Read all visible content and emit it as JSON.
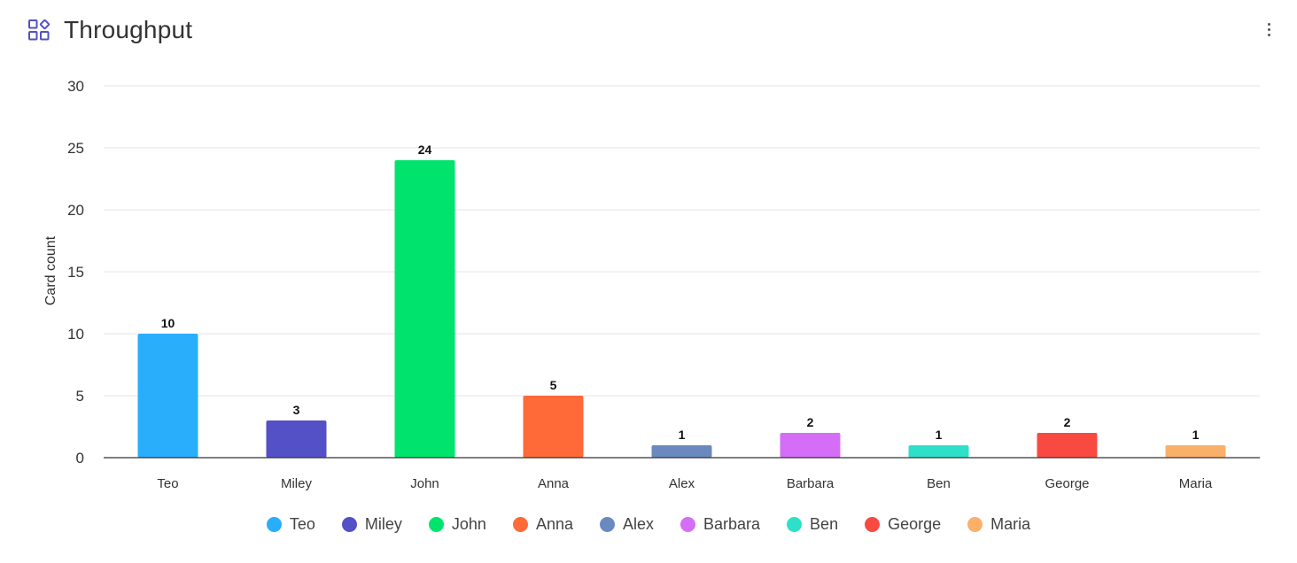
{
  "header": {
    "title": "Throughput",
    "widget_icon": "widget-grid-icon",
    "menu_icon": "more-vertical-icon"
  },
  "chart_data": {
    "type": "bar",
    "categories": [
      "Teo",
      "Miley",
      "John",
      "Anna",
      "Alex",
      "Barbara",
      "Ben",
      "George",
      "Maria"
    ],
    "values": [
      10,
      3,
      24,
      5,
      1,
      2,
      1,
      2,
      1
    ],
    "colors": [
      "#29aefc",
      "#5450c6",
      "#00e36d",
      "#ff6a38",
      "#6a8abf",
      "#d56ef7",
      "#2fe0c9",
      "#f94a42",
      "#fbb069"
    ],
    "ylabel": "Card count",
    "xlabel": "",
    "ylim": [
      0,
      30
    ],
    "yticks": [
      0,
      5,
      10,
      15,
      20,
      25,
      30
    ],
    "grid": true,
    "data_labels": true,
    "legend": "bottom"
  },
  "colors": {
    "accent": "#5450c6",
    "grid": "#e6e6e6",
    "axis": "#333333"
  }
}
